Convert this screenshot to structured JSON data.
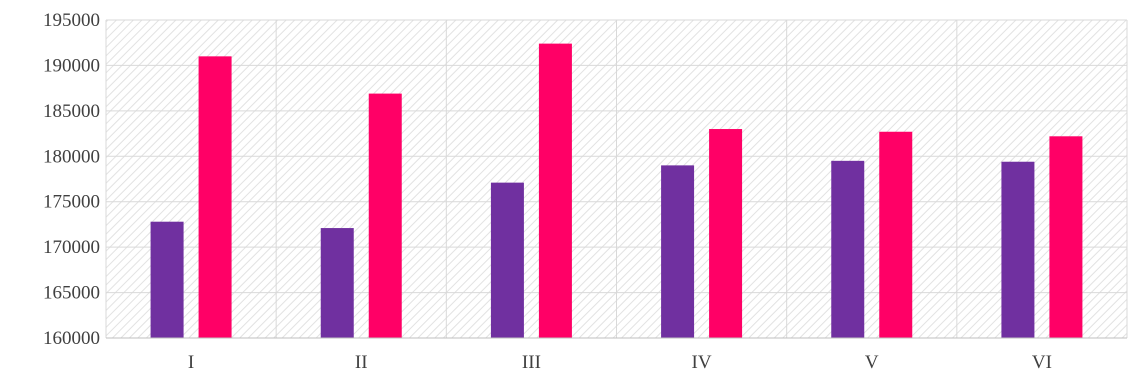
{
  "chart_data": {
    "type": "bar",
    "categories": [
      "I",
      "II",
      "III",
      "IV",
      "V",
      "VI"
    ],
    "series": [
      {
        "color": "#7030a0",
        "values": [
          172800,
          172100,
          177100,
          179000,
          179500,
          179400
        ]
      },
      {
        "color": "#ff0066",
        "values": [
          191000,
          186900,
          192400,
          183000,
          182700,
          182200
        ]
      }
    ],
    "ylim": [
      160000,
      195000
    ],
    "yticks": [
      160000,
      165000,
      170000,
      175000,
      180000,
      185000,
      190000,
      195000
    ],
    "grid": true,
    "background_pattern": "diagonal-hatch",
    "legend": "none"
  }
}
